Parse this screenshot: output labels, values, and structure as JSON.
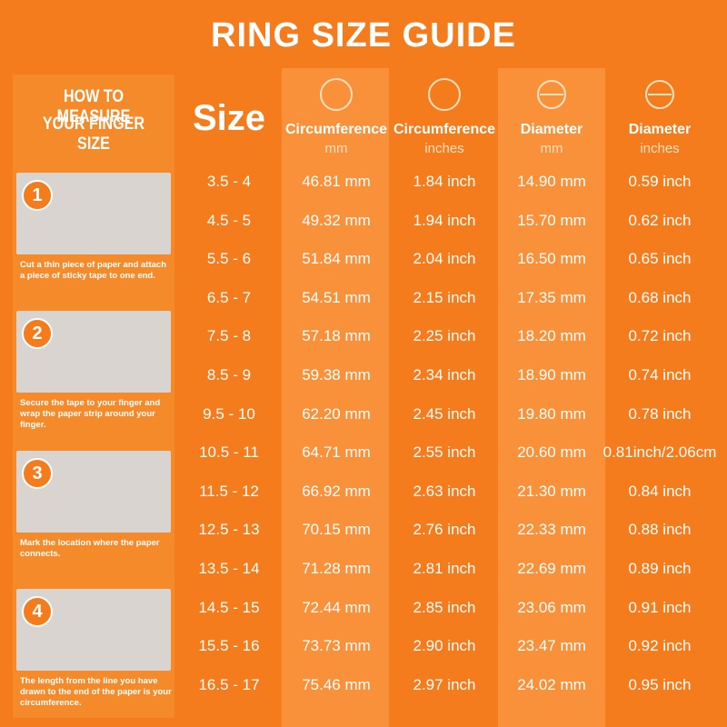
{
  "header": {
    "title": "RING SIZE GUIDE"
  },
  "guide": {
    "title_line1": "HOW TO MEASURE",
    "title_line2": "YOUR FINGER SIZE",
    "steps": [
      {
        "number": "1",
        "text": "Cut a thin piece of paper and attach a piece of sticky tape to one end."
      },
      {
        "number": "2",
        "text": "Secure the tape to your finger and wrap the paper strip around your finger."
      },
      {
        "number": "3",
        "text": "Mark the location where the paper connects."
      },
      {
        "number": "4",
        "text": "The length from the line you have drawn to the end of the paper is your circumference."
      }
    ]
  },
  "table": {
    "columns": [
      {
        "title": "Size",
        "unit": null
      },
      {
        "title": "Circumference",
        "unit": "mm"
      },
      {
        "title": "Circumference",
        "unit": "inches"
      },
      {
        "title": "Diameter",
        "unit": "mm"
      },
      {
        "title": "Diameter",
        "unit": "inches"
      }
    ],
    "rows": [
      [
        "3.5 - 4",
        "46.81 mm",
        "1.84 inch",
        "14.90 mm",
        "0.59 inch"
      ],
      [
        "4.5 - 5",
        "49.32 mm",
        "1.94 inch",
        "15.70 mm",
        "0.62 inch"
      ],
      [
        "5.5 - 6",
        "51.84 mm",
        "2.04 inch",
        "16.50 mm",
        "0.65 inch"
      ],
      [
        "6.5 - 7",
        "54.51 mm",
        "2.15 inch",
        "17.35 mm",
        "0.68 inch"
      ],
      [
        "7.5 - 8",
        "57.18 mm",
        "2.25 inch",
        "18.20 mm",
        "0.72 inch"
      ],
      [
        "8.5 - 9",
        "59.38 mm",
        "2.34 inch",
        "18.90 mm",
        "0.74 inch"
      ],
      [
        "9.5 - 10",
        "62.20 mm",
        "2.45 inch",
        "19.80 mm",
        "0.78 inch"
      ],
      [
        "10.5 - 11",
        "64.71 mm",
        "2.55 inch",
        "20.60 mm",
        "0.81inch/2.06cm"
      ],
      [
        "11.5 - 12",
        "66.92 mm",
        "2.63 inch",
        "21.30 mm",
        "0.84 inch"
      ],
      [
        "12.5 - 13",
        "70.15 mm",
        "2.76 inch",
        "22.33 mm",
        "0.88 inch"
      ],
      [
        "13.5 - 14",
        "71.28 mm",
        "2.81 inch",
        "22.69 mm",
        "0.89 inch"
      ],
      [
        "14.5 - 15",
        "72.44 mm",
        "2.85 inch",
        "23.06 mm",
        "0.91 inch"
      ],
      [
        "15.5 - 16",
        "73.73 mm",
        "2.90 inch",
        "23.47 mm",
        "0.92 inch"
      ],
      [
        "16.5 - 17",
        "75.46 mm",
        "2.97 inch",
        "24.02 mm",
        "0.95 inch"
      ]
    ]
  }
}
